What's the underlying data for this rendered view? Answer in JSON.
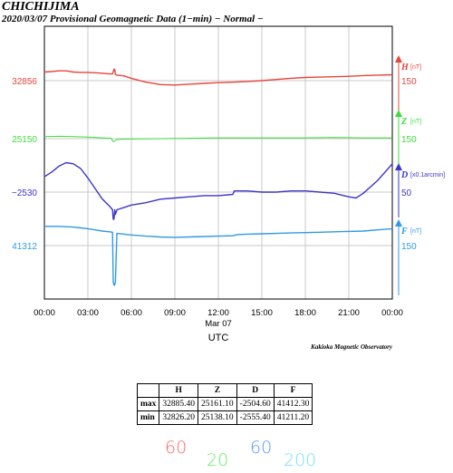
{
  "header": {
    "station": "CHICHIJIMA",
    "subtitle": "2020/03/07  Provisional Geomagnetic Data (1−min)  − Normal −"
  },
  "credit": "Kakioka Magnetic Observatory",
  "colors": {
    "H": "#e8453c",
    "Z": "#3ddc3d",
    "D": "#3b36c9",
    "F": "#2f9ae8",
    "grid": "#c8c8c8"
  },
  "chart_data": {
    "type": "line",
    "xlabel": "UTC",
    "date_label": "Mar 07",
    "x_ticks": [
      "00:00",
      "03:00",
      "06:00",
      "09:00",
      "12:00",
      "15:00",
      "18:00",
      "21:00",
      "00:00"
    ],
    "xlim_hours": [
      0,
      24
    ],
    "grid": true,
    "series": [
      {
        "name": "H",
        "unit": "[nT]",
        "left_label": "32856",
        "scale_label": "150",
        "x": [
          0,
          0.5,
          1,
          1.5,
          2,
          2.5,
          3,
          3.5,
          4,
          4.5,
          4.7,
          4.8,
          4.85,
          4.9,
          5,
          5.5,
          6,
          7,
          8,
          9,
          10,
          11,
          12,
          13,
          14,
          15,
          16,
          17,
          18,
          19,
          20,
          21,
          22,
          23,
          24
        ],
        "values": [
          32878,
          32879,
          32881,
          32881,
          32878,
          32877,
          32877,
          32876,
          32875,
          32873,
          32873,
          32885,
          32885,
          32872,
          32870,
          32868,
          32862,
          32852,
          32846,
          32845,
          32847,
          32849,
          32851,
          32852,
          32854,
          32856,
          32859,
          32862,
          32864,
          32865,
          32866,
          32867,
          32869,
          32870,
          32871
        ]
      },
      {
        "name": "Z",
        "unit": "[nT]",
        "left_label": "25150",
        "scale_label": "150",
        "x": [
          0,
          1,
          2,
          3,
          4,
          4.6,
          4.75,
          4.85,
          5,
          6,
          8,
          10,
          12,
          14,
          16,
          18,
          20,
          22,
          24
        ],
        "values": [
          25155,
          25156,
          25155,
          25154,
          25152,
          25151,
          25142,
          25144,
          25148,
          25149,
          25150,
          25151,
          25152,
          25152,
          25152,
          25152,
          25153,
          25152,
          25152
        ],
        "min_overall": 25138.1
      },
      {
        "name": "D",
        "unit": "[x0.1arcmin]",
        "left_label": "−2530",
        "scale_label": "50",
        "x": [
          0,
          0.5,
          1,
          1.5,
          2,
          2.5,
          3,
          3.5,
          4,
          4.5,
          4.7,
          4.75,
          4.8,
          4.85,
          4.9,
          5,
          5.5,
          6,
          7,
          8,
          9,
          10,
          11,
          12,
          13,
          13.1,
          14,
          15,
          16,
          17,
          18,
          19,
          20,
          21,
          21.5,
          22,
          23,
          24
        ],
        "values": [
          -2517,
          -2513,
          -2508,
          -2505,
          -2506,
          -2510,
          -2518,
          -2527,
          -2536,
          -2542,
          -2545,
          -2553,
          -2553,
          -2545,
          -2549,
          -2545,
          -2543,
          -2541,
          -2539,
          -2536,
          -2535,
          -2534,
          -2533,
          -2533,
          -2532,
          -2529,
          -2529,
          -2530,
          -2530,
          -2529,
          -2529,
          -2530,
          -2531,
          -2534,
          -2535,
          -2531,
          -2520,
          -2506
        ]
      },
      {
        "name": "F",
        "unit": "[nT]",
        "left_label": "41312",
        "scale_label": "150",
        "x": [
          0,
          0.5,
          1,
          1.5,
          2,
          2.5,
          3,
          3.5,
          4,
          4.5,
          4.7,
          4.75,
          4.8,
          4.85,
          4.9,
          5,
          5.5,
          6,
          7,
          8,
          9,
          10,
          11,
          12,
          13,
          13.3,
          14,
          15,
          16,
          17,
          18,
          19,
          20,
          21,
          22,
          23,
          24
        ],
        "values": [
          41361,
          41361,
          41361,
          41360,
          41359,
          41357,
          41355,
          41352,
          41349,
          41347,
          41346,
          41220,
          41211,
          41212,
          41220,
          41343,
          41341,
          41339,
          41336,
          41334,
          41333,
          41334,
          41335,
          41336,
          41337,
          41340,
          41341,
          41342,
          41343,
          41344,
          41345,
          41346,
          41347,
          41348,
          41349,
          41352,
          41355
        ]
      }
    ]
  },
  "stats": {
    "headers": [
      "",
      "H",
      "Z",
      "D",
      "F"
    ],
    "rows": [
      {
        "label": "max",
        "cells": [
          "32885.40",
          "25161.10",
          "-2504.60",
          "41412.30"
        ]
      },
      {
        "label": "min",
        "cells": [
          "32826.20",
          "25138.10",
          "-2555.40",
          "41211.20"
        ]
      }
    ]
  },
  "scale_legend": [
    "60",
    "20",
    "60",
    "200"
  ]
}
